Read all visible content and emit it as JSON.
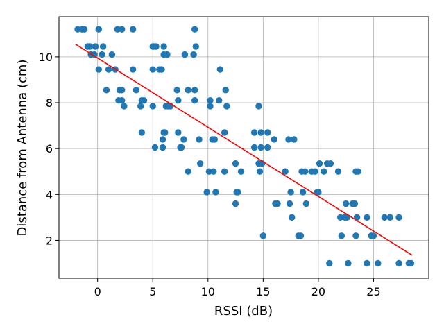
{
  "chart_data": {
    "type": "scatter",
    "title": "",
    "xlabel": "RSSI (dB)",
    "ylabel": "Distance from Antenna (cm)",
    "xlim": [
      -3.5,
      30
    ],
    "ylim": [
      0.35,
      11.75
    ],
    "xticks": [
      0,
      5,
      10,
      15,
      20,
      25
    ],
    "yticks": [
      2,
      4,
      6,
      8,
      10
    ],
    "grid": true,
    "legend": "none",
    "colors": {
      "points": "#1f77b4",
      "fit_line": "#ff0000",
      "grid": "#b0b0b0"
    },
    "series": [
      {
        "kind": "points",
        "x": [
          -1.8,
          -1.4,
          -1.2,
          -0.9,
          -0.7,
          -0.6,
          -0.3,
          -0.2,
          0.1,
          0.1,
          0.4,
          0.5,
          0.8,
          1.0,
          1.3,
          1.6,
          1.8,
          1.9,
          2.0,
          2.2,
          2.2,
          2.2,
          2.4,
          3.2,
          3.2,
          3.5,
          3.9,
          4.0,
          4.0,
          4.2,
          5.0,
          5.0,
          5.0,
          5.1,
          5.2,
          5.3,
          5.6,
          5.8,
          5.9,
          5.9,
          6.0,
          6.0,
          6.0,
          6.1,
          6.2,
          6.3,
          6.4,
          6.6,
          7.2,
          7.3,
          7.3,
          7.5,
          7.6,
          7.8,
          7.9,
          8.2,
          8.2,
          8.7,
          8.8,
          8.8,
          8.8,
          8.9,
          9.2,
          9.3,
          9.9,
          10.1,
          10.2,
          10.2,
          10.4,
          10.5,
          10.6,
          10.7,
          11.0,
          11.1,
          11.5,
          11.5,
          11.6,
          11.7,
          12.5,
          12.5,
          12.6,
          12.7,
          13.0,
          14.2,
          14.2,
          14.6,
          14.6,
          14.7,
          14.8,
          14.8,
          14.9,
          15.0,
          15.4,
          15.4,
          16.0,
          16.1,
          16.3,
          17.0,
          17.3,
          17.4,
          17.5,
          17.6,
          17.8,
          18.2,
          18.4,
          18.5,
          18.6,
          18.8,
          18.9,
          19.4,
          19.7,
          19.9,
          20.0,
          20.1,
          20.5,
          20.8,
          21.0,
          21.1,
          21.8,
          22.0,
          22.1,
          22.4,
          22.5,
          22.6,
          22.7,
          23.1,
          23.3,
          23.4,
          23.4,
          23.5,
          23.6,
          24.4,
          24.4,
          24.8,
          25.0,
          25.4,
          26.0,
          26.5,
          27.3,
          27.3,
          28.2,
          28.4
        ],
        "y": [
          11.2,
          11.2,
          11.2,
          10.45,
          10.45,
          10.1,
          10.1,
          10.45,
          11.2,
          9.45,
          10.1,
          10.45,
          8.55,
          9.45,
          10.1,
          9.45,
          11.2,
          8.1,
          8.55,
          8.1,
          8.55,
          11.2,
          7.85,
          11.2,
          9.45,
          8.55,
          7.85,
          6.7,
          8.1,
          8.1,
          9.45,
          10.45,
          7.85,
          10.45,
          6.05,
          10.45,
          9.45,
          9.45,
          6.05,
          6.4,
          6.7,
          10.45,
          10.1,
          6.7,
          7.85,
          10.1,
          7.85,
          7.85,
          8.55,
          6.7,
          8.1,
          6.05,
          6.05,
          6.4,
          10.1,
          8.55,
          5.0,
          10.1,
          11.2,
          8.1,
          8.55,
          10.45,
          6.4,
          5.35,
          4.1,
          5.0,
          7.85,
          8.1,
          6.4,
          5.0,
          6.4,
          4.1,
          8.1,
          9.45,
          6.7,
          5.0,
          8.55,
          7.85,
          3.6,
          5.35,
          4.1,
          4.1,
          5.0,
          6.05,
          6.7,
          7.85,
          5.35,
          5.0,
          6.05,
          6.7,
          5.35,
          2.2,
          6.05,
          6.7,
          6.4,
          3.6,
          3.6,
          5.0,
          6.4,
          3.6,
          4.1,
          3.0,
          6.4,
          2.2,
          2.2,
          5.0,
          4.1,
          5.0,
          3.6,
          5.0,
          5.0,
          4.1,
          4.1,
          5.35,
          5.0,
          5.35,
          1.0,
          5.35,
          5.0,
          3.0,
          2.2,
          3.0,
          3.6,
          3.0,
          1.0,
          3.6,
          3.6,
          5.0,
          2.2,
          3.0,
          5.0,
          3.0,
          1.0,
          2.2,
          2.2,
          1.0,
          3.0,
          3.0,
          1.0,
          3.0,
          1.0,
          1.0
        ]
      },
      {
        "kind": "fit_line",
        "x": [
          -2.0,
          28.5
        ],
        "y": [
          10.55,
          1.35
        ]
      }
    ]
  }
}
